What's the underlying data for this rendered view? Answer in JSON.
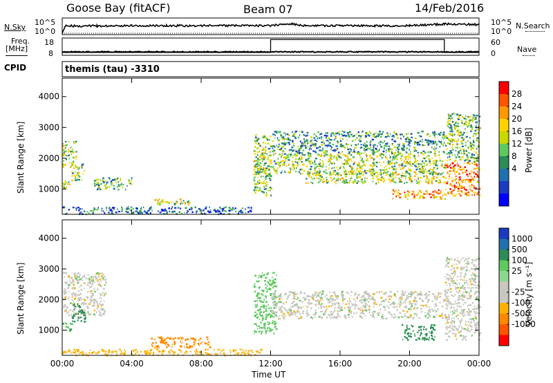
{
  "header": {
    "station": "Goose Bay (fitACF)",
    "beam": "Beam 07",
    "date": "14/Feb/2016"
  },
  "top_panels": {
    "nsky_label": "N.Sky",
    "nsearch_label": "N.Search",
    "noise_ticks_left": [
      "10^5",
      "10^0"
    ],
    "noise_ticks_right": [
      "10^5",
      "10^0"
    ],
    "freq_label_line1": "Freq.",
    "freq_label_line2": "[MHz]",
    "freq_ticks": [
      "18",
      "8"
    ],
    "nave_ticks": [
      "60",
      "0"
    ],
    "nave_label": "Nave",
    "cpid_label": "CPID",
    "cpid_text": "themis (tau) -3310"
  },
  "colorbars": {
    "power": {
      "label": "Power [dB]",
      "ticks": [
        "28",
        "24",
        "20",
        "16",
        "12",
        "8",
        "4"
      ],
      "colors": [
        "#ff0000",
        "#ff5500",
        "#ff9900",
        "#ffd200",
        "#c8d800",
        "#5fc85f",
        "#2e8b57",
        "#2070b0",
        "#1a3ac0",
        "#0000ff"
      ]
    },
    "velocity": {
      "label": "Velocity [m s⁻¹]",
      "ticks": [
        "1000",
        "500",
        "100",
        "25",
        "-25",
        "-100",
        "-500",
        "-1000"
      ],
      "colors": [
        "#1a3ac0",
        "#2070b0",
        "#2e8b57",
        "#5fc85f",
        "#8ed88e",
        "#c8c8c0",
        "#c8c8c0",
        "#ffb000",
        "#ff8800",
        "#ff5500",
        "#ff0000"
      ]
    }
  },
  "chart_data": [
    {
      "type": "line",
      "title": "",
      "series": [
        {
          "name": "N.Sky",
          "x": [
            "00:00",
            "00:10",
            "02:00",
            "04:00",
            "06:00",
            "08:00",
            "10:00",
            "12:00",
            "13:00",
            "14:00",
            "16:00",
            "18:00",
            "20:00",
            "22:00",
            "24:00"
          ],
          "y": [
            1,
            400,
            400,
            500,
            450,
            500,
            450,
            550,
            2000,
            450,
            500,
            450,
            450,
            1500,
            1000
          ]
        }
      ]
    },
    {
      "type": "line",
      "series": [
        {
          "name": "Freq.",
          "x": [
            "00:00",
            "24:00"
          ],
          "y": [
            10,
            10
          ]
        },
        {
          "name": "Nave",
          "x": [
            "00:00",
            "12:00",
            "12:00",
            "22:00",
            "22:00",
            "24:00"
          ],
          "y": [
            10,
            10,
            55,
            55,
            10,
            10
          ]
        }
      ],
      "ylim_freq": [
        8,
        18
      ],
      "ylim_nave": [
        0,
        60
      ]
    },
    {
      "type": "heatmap",
      "ylabel": "Slant Range [km]",
      "xlabel": "Time UT",
      "xticks": [
        "00:00",
        "04:00",
        "08:00",
        "12:00",
        "16:00",
        "20:00",
        "00:00"
      ],
      "yticks": [
        "4000",
        "3000",
        "2000",
        "1000"
      ],
      "xlim_hours": [
        0,
        24
      ],
      "ylim_km": [
        180,
        4600
      ],
      "regions": [
        {
          "t0": 0.0,
          "t1": 0.8,
          "r0": 1700,
          "r1": 2600,
          "level": 0.55
        },
        {
          "t0": 0.5,
          "t1": 1.3,
          "r0": 1300,
          "r1": 1900,
          "level": 0.5
        },
        {
          "t0": 0.0,
          "t1": 0.4,
          "r0": 1000,
          "r1": 1300,
          "level": 0.55
        },
        {
          "t0": 1.8,
          "t1": 4.0,
          "r0": 1000,
          "r1": 1400,
          "level": 0.4
        },
        {
          "t0": 5.2,
          "t1": 7.3,
          "r0": 500,
          "r1": 700,
          "level": 0.55
        },
        {
          "t0": 0.0,
          "t1": 11.0,
          "r0": 200,
          "r1": 450,
          "level": 0.25
        },
        {
          "t0": 11.0,
          "t1": 12.0,
          "r0": 800,
          "r1": 2800,
          "level": 0.5
        },
        {
          "t0": 11.0,
          "t1": 22.0,
          "r0": 1500,
          "r1": 2200,
          "level": 0.5
        },
        {
          "t0": 14.0,
          "t1": 22.0,
          "r0": 1200,
          "r1": 1600,
          "level": 0.55
        },
        {
          "t0": 12.0,
          "t1": 22.0,
          "r0": 2200,
          "r1": 2900,
          "level": 0.35
        },
        {
          "t0": 19.0,
          "t1": 22.0,
          "r0": 700,
          "r1": 1000,
          "level": 0.75
        },
        {
          "t0": 22.0,
          "t1": 24.0,
          "r0": 800,
          "r1": 1900,
          "level": 0.8
        },
        {
          "t0": 22.0,
          "t1": 24.0,
          "r0": 1900,
          "r1": 3500,
          "level": 0.45
        }
      ]
    },
    {
      "type": "heatmap",
      "ylabel": "Slant Range [km]",
      "xlabel": "Time UT",
      "xticks": [
        "00:00",
        "04:00",
        "08:00",
        "12:00",
        "16:00",
        "20:00",
        "00:00"
      ],
      "yticks": [
        "4000",
        "3000",
        "2000",
        "1000"
      ],
      "xlim_hours": [
        0,
        24
      ],
      "ylim_km": [
        180,
        4600
      ],
      "regions": [
        {
          "t0": 0.0,
          "t1": 2.5,
          "r0": 1500,
          "r1": 2900,
          "velocity": 0
        },
        {
          "t0": 0.5,
          "t1": 1.3,
          "r0": 1300,
          "r1": 1900,
          "velocity": 150
        },
        {
          "t0": 0.0,
          "t1": 0.5,
          "r0": 1000,
          "r1": 1300,
          "velocity": 80
        },
        {
          "t0": 5.0,
          "t1": 8.5,
          "r0": 450,
          "r1": 800,
          "velocity": -120
        },
        {
          "t0": 0.0,
          "t1": 11.5,
          "r0": 200,
          "r1": 400,
          "velocity": -60
        },
        {
          "t0": 11.0,
          "t1": 12.3,
          "r0": 900,
          "r1": 2900,
          "velocity": 60
        },
        {
          "t0": 12.0,
          "t1": 22.0,
          "r0": 1400,
          "r1": 2300,
          "velocity": 0
        },
        {
          "t0": 19.5,
          "t1": 21.5,
          "r0": 700,
          "r1": 1200,
          "velocity": 120
        },
        {
          "t0": 22.0,
          "t1": 24.0,
          "r0": 700,
          "r1": 3400,
          "velocity": 0
        }
      ]
    }
  ]
}
